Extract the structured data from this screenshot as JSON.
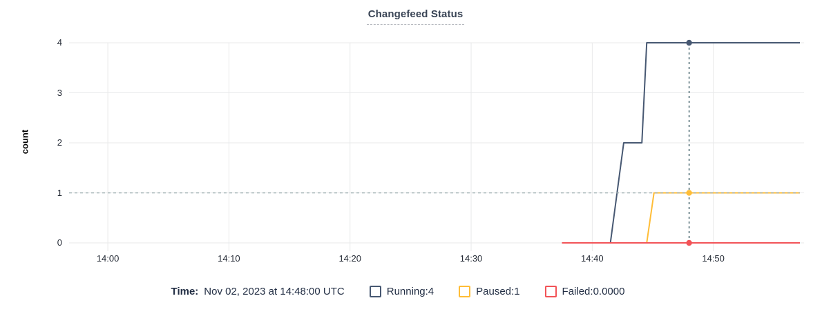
{
  "title": "Changefeed Status",
  "axes": {
    "ylabel": "count"
  },
  "legend": {
    "time_label": "Time:",
    "time_value": "Nov 02, 2023 at 14:48:00 UTC",
    "items": [
      {
        "name": "running",
        "label": "Running:",
        "value": "4",
        "color": "#475872"
      },
      {
        "name": "paused",
        "label": "Paused:",
        "value": "1",
        "color": "#ffbd37"
      },
      {
        "name": "failed",
        "label": "Failed:",
        "value": "0.0000",
        "color": "#f25357"
      }
    ]
  },
  "chart_data": {
    "type": "line",
    "title": "Changefeed Status",
    "xlabel": "",
    "ylabel": "count",
    "x_unit": "minutes after 14:00 UTC on Nov 02, 2023",
    "x_domain": [
      -3.2,
      57.15
    ],
    "y_domain": [
      0,
      4
    ],
    "grid": true,
    "x_ticks": [
      {
        "m": 0,
        "label": "14:00"
      },
      {
        "m": 10,
        "label": "14:10"
      },
      {
        "m": 20,
        "label": "14:20"
      },
      {
        "m": 30,
        "label": "14:30"
      },
      {
        "m": 40,
        "label": "14:40"
      },
      {
        "m": 50,
        "label": "14:50"
      }
    ],
    "y_ticks": [
      0,
      1,
      2,
      3,
      4
    ],
    "grid_color": "#e8e9ea",
    "series": [
      {
        "name": "Running",
        "color": "#475872",
        "points": [
          [
            37.5,
            0
          ],
          [
            41.5,
            0
          ],
          [
            42.6,
            2
          ],
          [
            44.1,
            2
          ],
          [
            44.5,
            4
          ],
          [
            57.15,
            4
          ]
        ]
      },
      {
        "name": "Paused",
        "color": "#ffbd37",
        "points": [
          [
            44.5,
            0
          ],
          [
            45.1,
            1
          ],
          [
            57.15,
            1
          ]
        ]
      },
      {
        "name": "Failed",
        "color": "#f25357",
        "points": [
          [
            37.5,
            0
          ],
          [
            57.15,
            0
          ]
        ]
      }
    ],
    "hover": {
      "time_label": "Nov 02, 2023 at 14:48:00 UTC",
      "time_m": 48,
      "values": {
        "Running": 4,
        "Paused": 1,
        "Failed": 0
      },
      "hline_value": 1,
      "vline_color": "#44636c",
      "hline_color": "#9fafb1"
    }
  }
}
